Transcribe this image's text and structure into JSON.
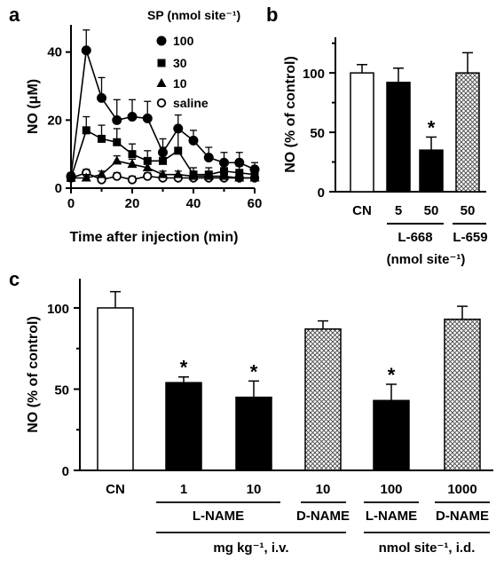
{
  "chart_data": [
    {
      "panel": "a",
      "type": "line",
      "xlabel": "Time after injection (min)",
      "ylabel": "NO (μM)",
      "xlim": [
        0,
        60
      ],
      "ylim": [
        0,
        48
      ],
      "xticks": [
        "0",
        "20",
        "40",
        "60"
      ],
      "yticks": [
        "0",
        "20",
        "40"
      ],
      "legend_title": "SP (nmol site⁻¹)",
      "legend_position": "top-right",
      "x": [
        0,
        5,
        10,
        15,
        20,
        25,
        30,
        35,
        40,
        45,
        50,
        55,
        60
      ],
      "series": [
        {
          "name": "100",
          "marker": "filled-circle",
          "values": [
            3.5,
            40.5,
            26.5,
            20,
            21,
            20.5,
            10.5,
            17.5,
            14,
            9,
            7.5,
            7.5,
            5.5
          ],
          "errors": [
            1,
            6,
            6,
            6,
            5,
            5,
            4,
            4,
            3,
            3,
            3,
            3,
            2
          ]
        },
        {
          "name": "30",
          "marker": "filled-square",
          "values": [
            3,
            17,
            14.5,
            13.5,
            10,
            8,
            8,
            11,
            4,
            4,
            5,
            4.5,
            4
          ],
          "errors": [
            1,
            4,
            4,
            4,
            3,
            3,
            4,
            6,
            2,
            2,
            2,
            2,
            2
          ]
        },
        {
          "name": "10",
          "marker": "filled-triangle",
          "values": [
            3,
            3,
            4,
            8,
            7,
            6,
            4,
            4,
            3.5,
            3.5,
            3.5,
            3,
            3
          ],
          "errors": [
            0.5,
            1,
            1,
            1.5,
            1.5,
            1.5,
            1,
            1,
            1,
            1,
            1,
            1,
            1
          ]
        },
        {
          "name": "saline",
          "marker": "open-circle",
          "values": [
            3,
            4.5,
            2.5,
            3.5,
            2.5,
            3.5,
            3,
            3,
            3,
            3,
            3,
            3,
            3
          ],
          "errors": [
            0.5,
            1,
            1,
            1,
            1,
            1,
            1,
            1,
            1,
            1,
            1,
            1,
            1
          ]
        }
      ]
    },
    {
      "panel": "b",
      "type": "bar",
      "ylabel": "NO (% of control)",
      "ylim": [
        0,
        130
      ],
      "yticks": [
        "0",
        "50",
        "100"
      ],
      "categories": [
        "CN",
        "5",
        "50",
        "50"
      ],
      "values": [
        100,
        92,
        35,
        100
      ],
      "errors": [
        7,
        12,
        11,
        17
      ],
      "fills": [
        "white",
        "black",
        "black",
        "hatched"
      ],
      "significant": [
        false,
        false,
        true,
        false
      ],
      "group_labels": [
        {
          "label": "L-668",
          "spans": [
            1,
            2
          ]
        },
        {
          "label": "L-659",
          "spans": [
            3,
            3
          ]
        }
      ],
      "unit_label": "(nmol site⁻¹)",
      "sig_mark": "*"
    },
    {
      "panel": "c",
      "type": "bar",
      "ylabel": "NO (% of control)",
      "ylim": [
        0,
        118
      ],
      "yticks": [
        "0",
        "50",
        "100"
      ],
      "categories": [
        "CN",
        "1",
        "10",
        "10",
        "100",
        "1000"
      ],
      "values": [
        100,
        54,
        45,
        87,
        43,
        93
      ],
      "errors": [
        10,
        3.5,
        10,
        5,
        10,
        8
      ],
      "fills": [
        "white",
        "black",
        "black",
        "hatched",
        "black",
        "hatched"
      ],
      "significant": [
        false,
        true,
        true,
        false,
        true,
        false
      ],
      "drug_labels": [
        {
          "label": "L-NAME",
          "spans": [
            1,
            2
          ]
        },
        {
          "label": "D-NAME",
          "spans": [
            3,
            3
          ]
        },
        {
          "label": "L-NAME",
          "spans": [
            4,
            4
          ]
        },
        {
          "label": "D-NAME",
          "spans": [
            5,
            5
          ]
        }
      ],
      "route_labels": [
        {
          "label": "mg kg⁻¹, i.v.",
          "spans": [
            1,
            3
          ]
        },
        {
          "label": "nmol site⁻¹, i.d.",
          "spans": [
            4,
            5
          ]
        }
      ],
      "sig_mark": "*"
    }
  ]
}
